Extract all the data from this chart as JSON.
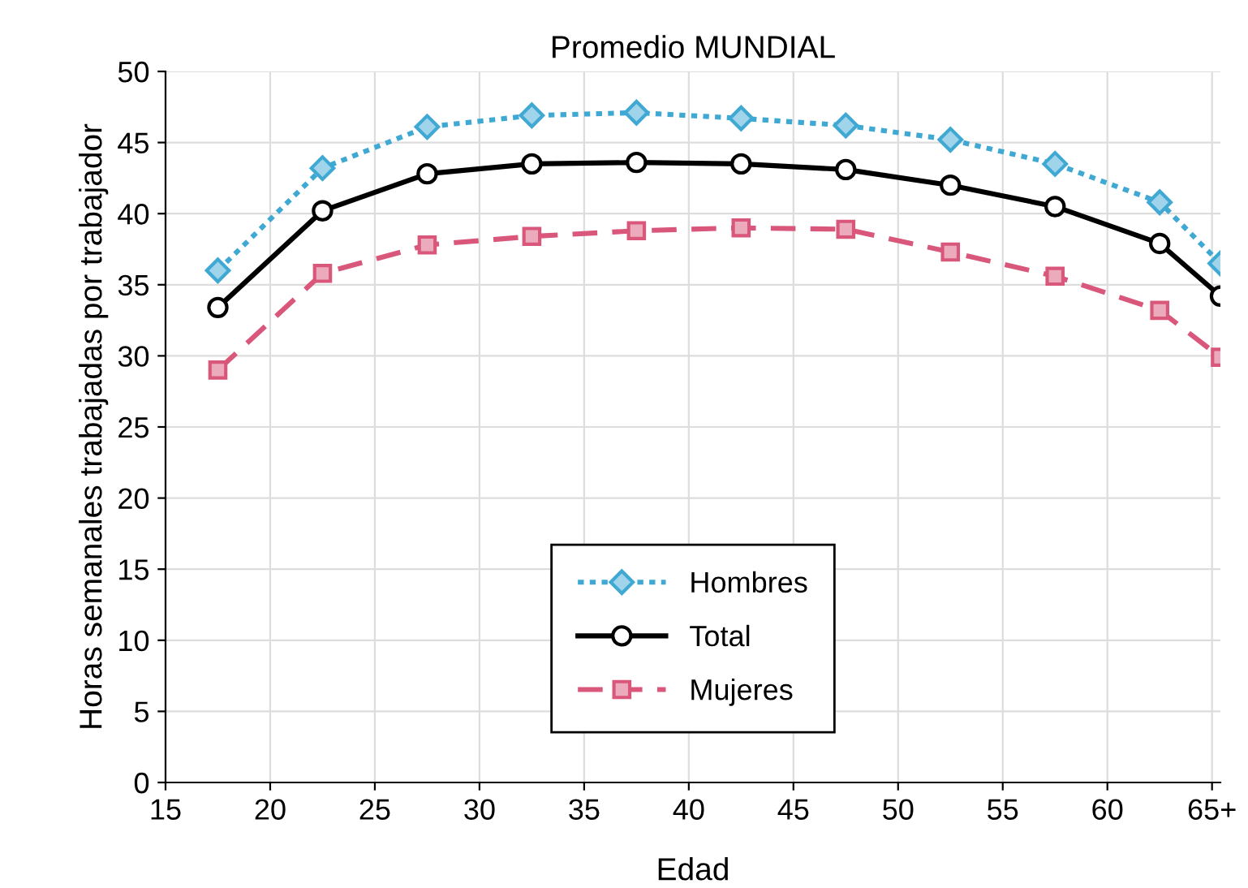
{
  "chart_data": {
    "type": "line",
    "title": "Promedio MUNDIAL",
    "xlabel": "Edad",
    "ylabel": "Horas semanales trabajadas por trabajador",
    "x": [
      17.5,
      22.5,
      27.5,
      32.5,
      37.5,
      42.5,
      47.5,
      52.5,
      57.5,
      62.5,
      65.4
    ],
    "series": [
      {
        "name": "Hombres",
        "color": "#3fa9d4",
        "marker": "diamond",
        "line_style": "dotted",
        "values": [
          36.0,
          43.2,
          46.1,
          46.9,
          47.1,
          46.7,
          46.2,
          45.2,
          43.5,
          40.8,
          36.5
        ]
      },
      {
        "name": "Total",
        "color": "#000000",
        "marker": "circle",
        "line_style": "solid",
        "values": [
          33.4,
          40.2,
          42.8,
          43.5,
          43.6,
          43.5,
          43.1,
          42.0,
          40.5,
          37.9,
          34.2
        ]
      },
      {
        "name": "Mujeres",
        "color": "#d9577a",
        "marker": "square",
        "line_style": "dashed",
        "values": [
          29.0,
          35.8,
          37.8,
          38.4,
          38.8,
          39.0,
          38.9,
          37.3,
          35.6,
          33.2,
          29.9
        ]
      }
    ],
    "xlim": [
      15,
      65.4
    ],
    "ylim": [
      0,
      50
    ],
    "xticks": [
      15,
      20,
      25,
      30,
      35,
      40,
      45,
      50,
      55,
      60,
      {
        "value": 65,
        "label": "65+"
      }
    ],
    "yticks": [
      0,
      5,
      10,
      15,
      20,
      25,
      30,
      35,
      40,
      45,
      50
    ],
    "grid": true,
    "legend": "bottom"
  }
}
